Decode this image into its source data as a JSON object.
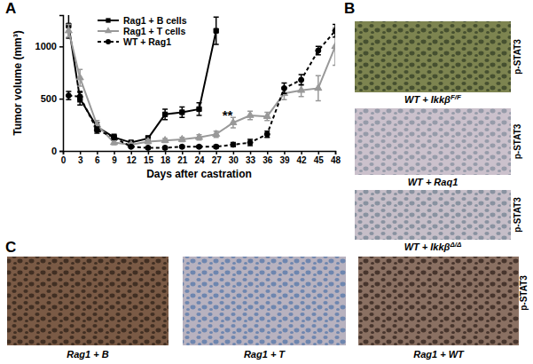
{
  "chart_data": {
    "type": "line",
    "x": [
      1,
      3,
      6,
      9,
      12,
      15,
      18,
      21,
      24,
      27,
      30,
      33,
      36,
      39,
      42,
      45,
      48
    ],
    "xlim": [
      0,
      48
    ],
    "xticks": [
      0,
      3,
      6,
      9,
      12,
      15,
      18,
      21,
      24,
      27,
      30,
      33,
      36,
      39,
      42,
      45,
      48
    ],
    "ylim": [
      0,
      1300
    ],
    "yticks": [
      0,
      500,
      1000
    ],
    "x_label": "Days after castration",
    "y_label": "Tumor volume (mm³)",
    "legend": "upper-left",
    "annotations": [
      {
        "text": "**",
        "x": 29,
        "y": 300
      }
    ],
    "series": [
      {
        "name": "Rag1 + B cells",
        "color": "#000000",
        "marker": "square",
        "line_style": "solid",
        "values": [
          1200,
          500,
          230,
          130,
          80,
          120,
          350,
          370,
          400,
          1150,
          null,
          null,
          null,
          null,
          null,
          null,
          null
        ],
        "errors": [
          120,
          60,
          40,
          30,
          20,
          25,
          50,
          50,
          60,
          130,
          null,
          null,
          null,
          null,
          null,
          null,
          null
        ]
      },
      {
        "name": "Rag1 + T cells",
        "color": "#999999",
        "marker": "triangle",
        "line_style": "solid",
        "values": [
          1150,
          700,
          250,
          80,
          60,
          90,
          100,
          110,
          130,
          160,
          270,
          340,
          330,
          550,
          580,
          600,
          1000
        ],
        "errors": [
          60,
          80,
          40,
          20,
          15,
          20,
          20,
          20,
          25,
          30,
          50,
          40,
          40,
          60,
          60,
          120,
          180
        ]
      },
      {
        "name": "WT + Rag1",
        "color": "#000000",
        "marker": "circle",
        "line_style": "dashed",
        "values": [
          530,
          520,
          200,
          130,
          40,
          30,
          30,
          40,
          40,
          40,
          60,
          80,
          160,
          600,
          680,
          960,
          1150
        ],
        "errors": [
          40,
          50,
          30,
          20,
          10,
          10,
          10,
          10,
          10,
          15,
          20,
          30,
          30,
          50,
          50,
          40,
          60
        ]
      }
    ]
  },
  "figure": {
    "panel_labels": [
      "A",
      "B",
      "C"
    ],
    "panel_b": {
      "stain": "p-STAT3",
      "images": [
        {
          "caption": "WT + Ikkβ",
          "superscript": "F/F"
        },
        {
          "caption": "WT + Raq1"
        },
        {
          "caption": "WT + Ikkβ",
          "superscript": "Δ/Δ"
        }
      ]
    },
    "panel_c": {
      "stain": "p-STAT3",
      "images": [
        {
          "caption": "Rag1 + B"
        },
        {
          "caption": "Rag1 + T"
        },
        {
          "caption": "Rag1 + WT"
        }
      ]
    }
  }
}
